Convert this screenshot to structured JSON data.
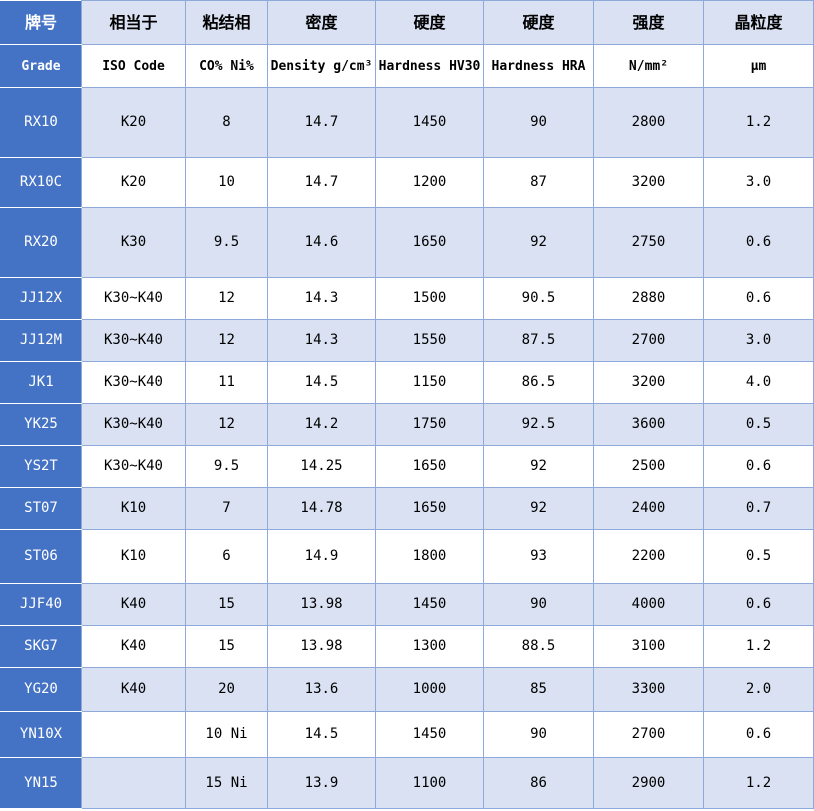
{
  "header_cn": [
    "牌号",
    "相当于",
    "粘结相",
    "密度",
    "硬度",
    "硬度",
    "强度",
    "晶粒度"
  ],
  "header_en": [
    "Grade",
    "ISO Code",
    "CO% Ni%",
    "Density g/cm³",
    "Hardness HV30",
    "Hardness HRA",
    "N/mm²",
    "μm"
  ],
  "rows": [
    [
      "RX10",
      "K20",
      "8",
      "14.7",
      "1450",
      "90",
      "2800",
      "1.2"
    ],
    [
      "RX10C",
      "K20",
      "10",
      "14.7",
      "1200",
      "87",
      "3200",
      "3.0"
    ],
    [
      "RX20",
      "K30",
      "9.5",
      "14.6",
      "1650",
      "92",
      "2750",
      "0.6"
    ],
    [
      "JJ12X",
      "K30~K40",
      "12",
      "14.3",
      "1500",
      "90.5",
      "2880",
      "0.6"
    ],
    [
      "JJ12M",
      "K30~K40",
      "12",
      "14.3",
      "1550",
      "87.5",
      "2700",
      "3.0"
    ],
    [
      "JK1",
      "K30~K40",
      "11",
      "14.5",
      "1150",
      "86.5",
      "3200",
      "4.0"
    ],
    [
      "YK25",
      "K30~K40",
      "12",
      "14.2",
      "1750",
      "92.5",
      "3600",
      "0.5"
    ],
    [
      "YS2T",
      "K30~K40",
      "9.5",
      "14.25",
      "1650",
      "92",
      "2500",
      "0.6"
    ],
    [
      "ST07",
      "K10",
      "7",
      "14.78",
      "1650",
      "92",
      "2400",
      "0.7"
    ],
    [
      "ST06",
      "K10",
      "6",
      "14.9",
      "1800",
      "93",
      "2200",
      "0.5"
    ],
    [
      "JJF40",
      "K40",
      "15",
      "13.98",
      "1450",
      "90",
      "4000",
      "0.6"
    ],
    [
      "SKG7",
      "K40",
      "15",
      "13.98",
      "1300",
      "88.5",
      "3100",
      "1.2"
    ],
    [
      "YG20",
      "K40",
      "20",
      "13.6",
      "1000",
      "85",
      "3300",
      "2.0"
    ],
    [
      "YN10X",
      "",
      "10 Ni",
      "14.5",
      "1450",
      "90",
      "2700",
      "0.6"
    ],
    [
      "YN15",
      "",
      "15 Ni",
      "13.9",
      "1100",
      "86",
      "2900",
      "1.2"
    ]
  ],
  "colors": {
    "grade_column": "#4472c4",
    "band": "#d9e1f2",
    "grid": "#8eaadb"
  }
}
